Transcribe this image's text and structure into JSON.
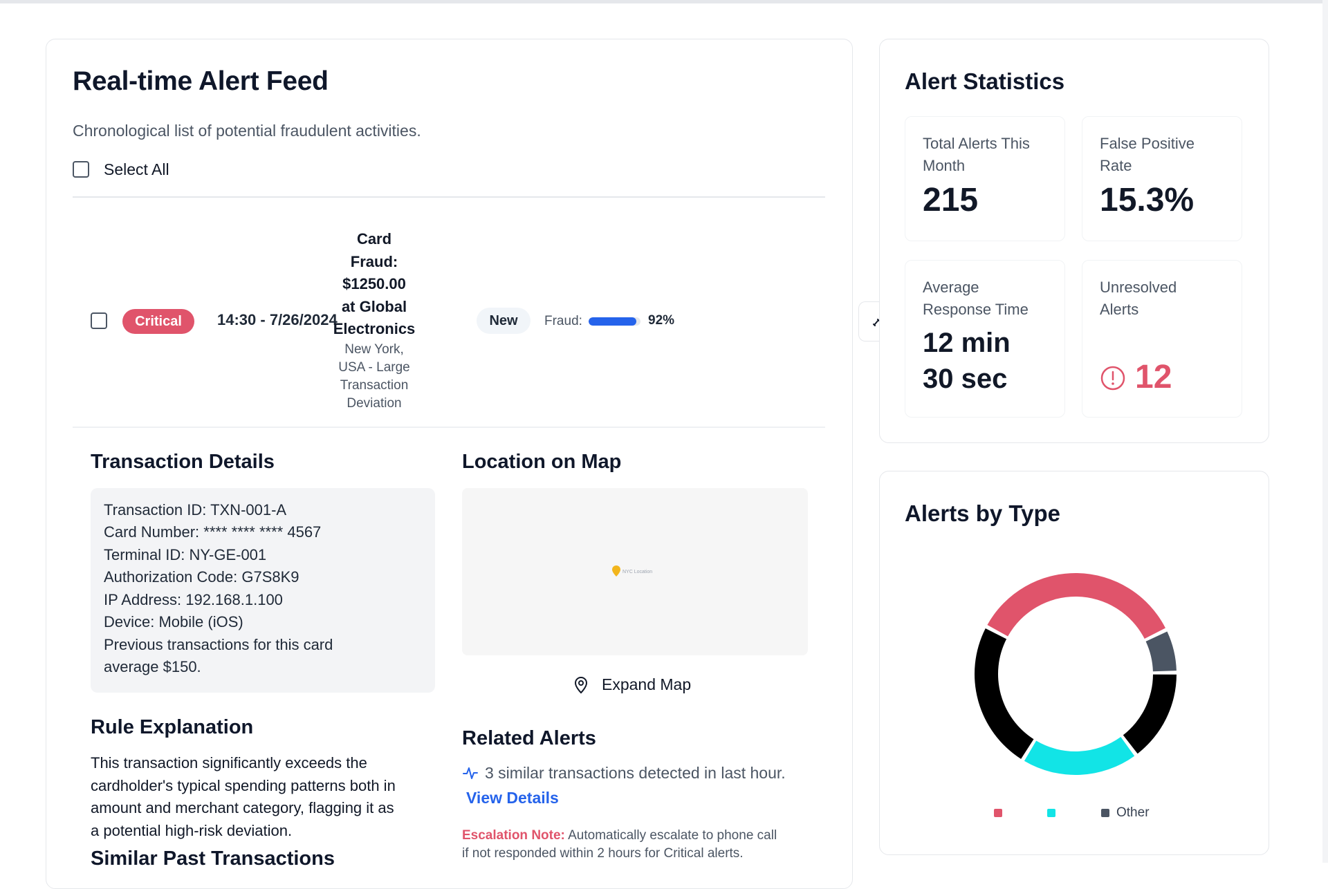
{
  "alert_feed": {
    "title": "Real-time Alert Feed",
    "subtitle": "Chronological list of potential fraudulent activities.",
    "select_all_label": "Select All",
    "alert": {
      "severity": "Critical",
      "time": "14:30 - 7/26/2024",
      "title_lines": [
        "Card",
        "Fraud:",
        "$1250.00",
        "at Global",
        "Electronics"
      ],
      "location_lines": [
        "New York,",
        "USA - Large",
        "Transaction",
        "Deviation"
      ],
      "status": "New",
      "fraud_label": "Fraud:",
      "fraud_score_percent": 92,
      "fraud_score_label": "92%",
      "colors": {
        "critical": "#e0546b",
        "fraud_bar": "#2563eb"
      }
    },
    "transaction_details": {
      "heading": "Transaction Details",
      "lines": [
        "Transaction ID: TXN-001-A",
        "Card Number: **** **** **** 4567",
        "Terminal ID: NY-GE-001",
        "Authorization Code: G7S8K9",
        "IP Address: 192.168.1.100",
        "Device: Mobile (iOS)",
        "Previous transactions for this card",
        "average $150."
      ]
    },
    "rule_explanation": {
      "heading": "Rule Explanation",
      "lines": [
        "This transaction significantly exceeds the",
        "cardholder's typical spending patterns both in",
        "amount and merchant category, flagging it as",
        "a potential high-risk deviation."
      ]
    },
    "similar_past": {
      "heading": "Similar Past Transactions"
    },
    "location_map": {
      "heading": "Location on Map",
      "marker_label": "NYC Location",
      "expand_label": "Expand Map"
    },
    "related_alerts": {
      "heading": "Related Alerts",
      "text": "3 similar transactions detected in last hour.",
      "link": "View Details"
    },
    "escalation": {
      "label": "Escalation Note:",
      "line1": "Automatically escalate to phone call",
      "line2": "if not responded within 2 hours for Critical alerts."
    }
  },
  "alert_statistics": {
    "title": "Alert Statistics",
    "tiles": [
      {
        "label_lines": [
          "Total Alerts This",
          "Month"
        ],
        "value": "215"
      },
      {
        "label_lines": [
          "False Positive",
          "Rate"
        ],
        "value": "15.3%"
      },
      {
        "label_lines": [
          "Average",
          "Response Time"
        ],
        "value_lines": [
          "12 min",
          "30 sec"
        ]
      },
      {
        "label_lines": [
          "Unresolved",
          "Alerts"
        ],
        "value": "12",
        "icon": "alert-circle-icon",
        "color": "#e0546b"
      }
    ]
  },
  "alerts_by_type": {
    "title": "Alerts by Type",
    "legend": [
      {
        "label": "",
        "color": "#e0546b"
      },
      {
        "label": "",
        "color": "#12e4e6"
      },
      {
        "label": "Other",
        "color": "#4b5563"
      }
    ],
    "chart_data": {
      "type": "pie",
      "slices": [
        {
          "value": 35,
          "color": "#e0546b"
        },
        {
          "value": 7,
          "color": "#4b5563"
        },
        {
          "value": 15,
          "color": "#000000"
        },
        {
          "value": 19,
          "color": "#12e4e6"
        },
        {
          "value": 24,
          "color": "#000000"
        }
      ]
    }
  }
}
